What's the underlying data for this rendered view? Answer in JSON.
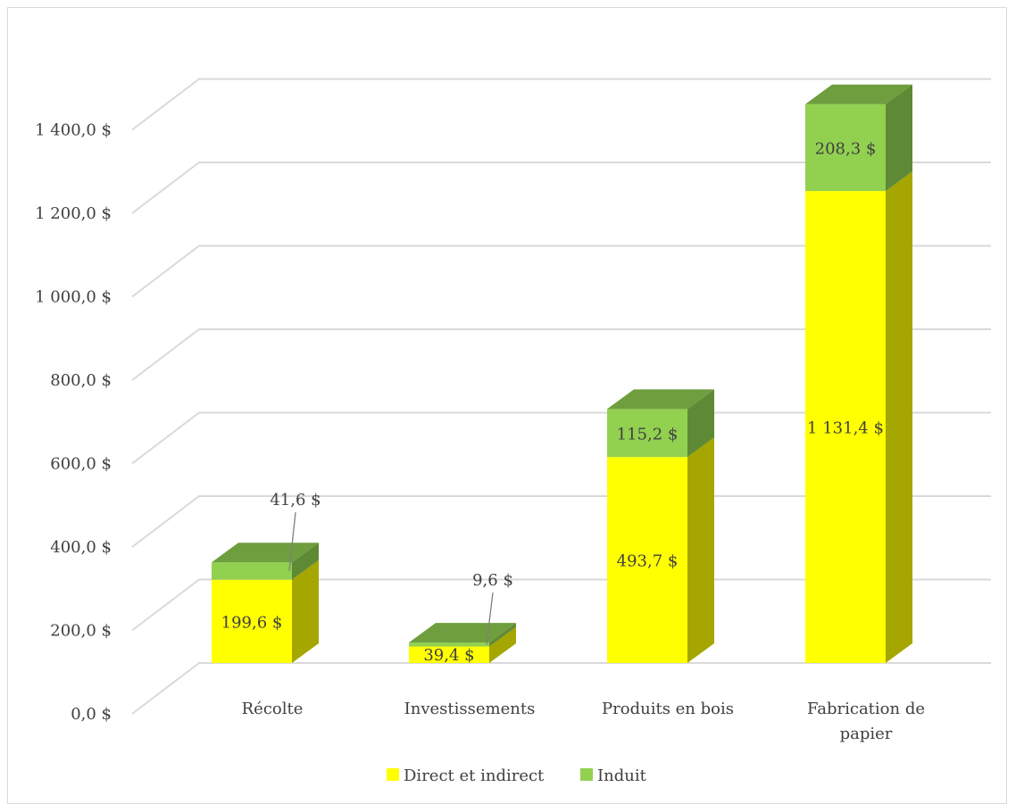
{
  "chart_data": {
    "type": "bar",
    "stacked": true,
    "three_d": true,
    "categories": [
      "Récolte",
      "Investissements",
      "Produits en bois",
      "Fabrication de papier"
    ],
    "series": [
      {
        "name": "Direct et indirect",
        "values": [
          199.6,
          39.4,
          493.7,
          1131.4
        ],
        "labels": [
          "199,6 $",
          "39,4 $",
          "493,7 $",
          "1 131,4 $"
        ]
      },
      {
        "name": "Induit",
        "values": [
          41.6,
          9.6,
          115.2,
          208.3
        ],
        "labels": [
          "41,6 $",
          "9,6 $",
          "115,2 $",
          "208,3 $"
        ]
      }
    ],
    "ylim": [
      0,
      1400
    ],
    "yticks": [
      0,
      200,
      400,
      600,
      800,
      1000,
      1200,
      1400
    ],
    "ytick_labels": [
      "0,0 $",
      "200,0 $",
      "400,0 $",
      "600,0 $",
      "800,0 $",
      "1 000,0 $",
      "1 200,0 $",
      "1 400,0 $"
    ],
    "grid": true,
    "legend_position": "bottom",
    "colors": {
      "direct_front": "#ffff00",
      "direct_side": "#a6a600",
      "induit_front": "#92d050",
      "induit_side": "#5f8a35",
      "induit_top": "#6e9e3e",
      "grid": "#d9d9d9"
    }
  }
}
